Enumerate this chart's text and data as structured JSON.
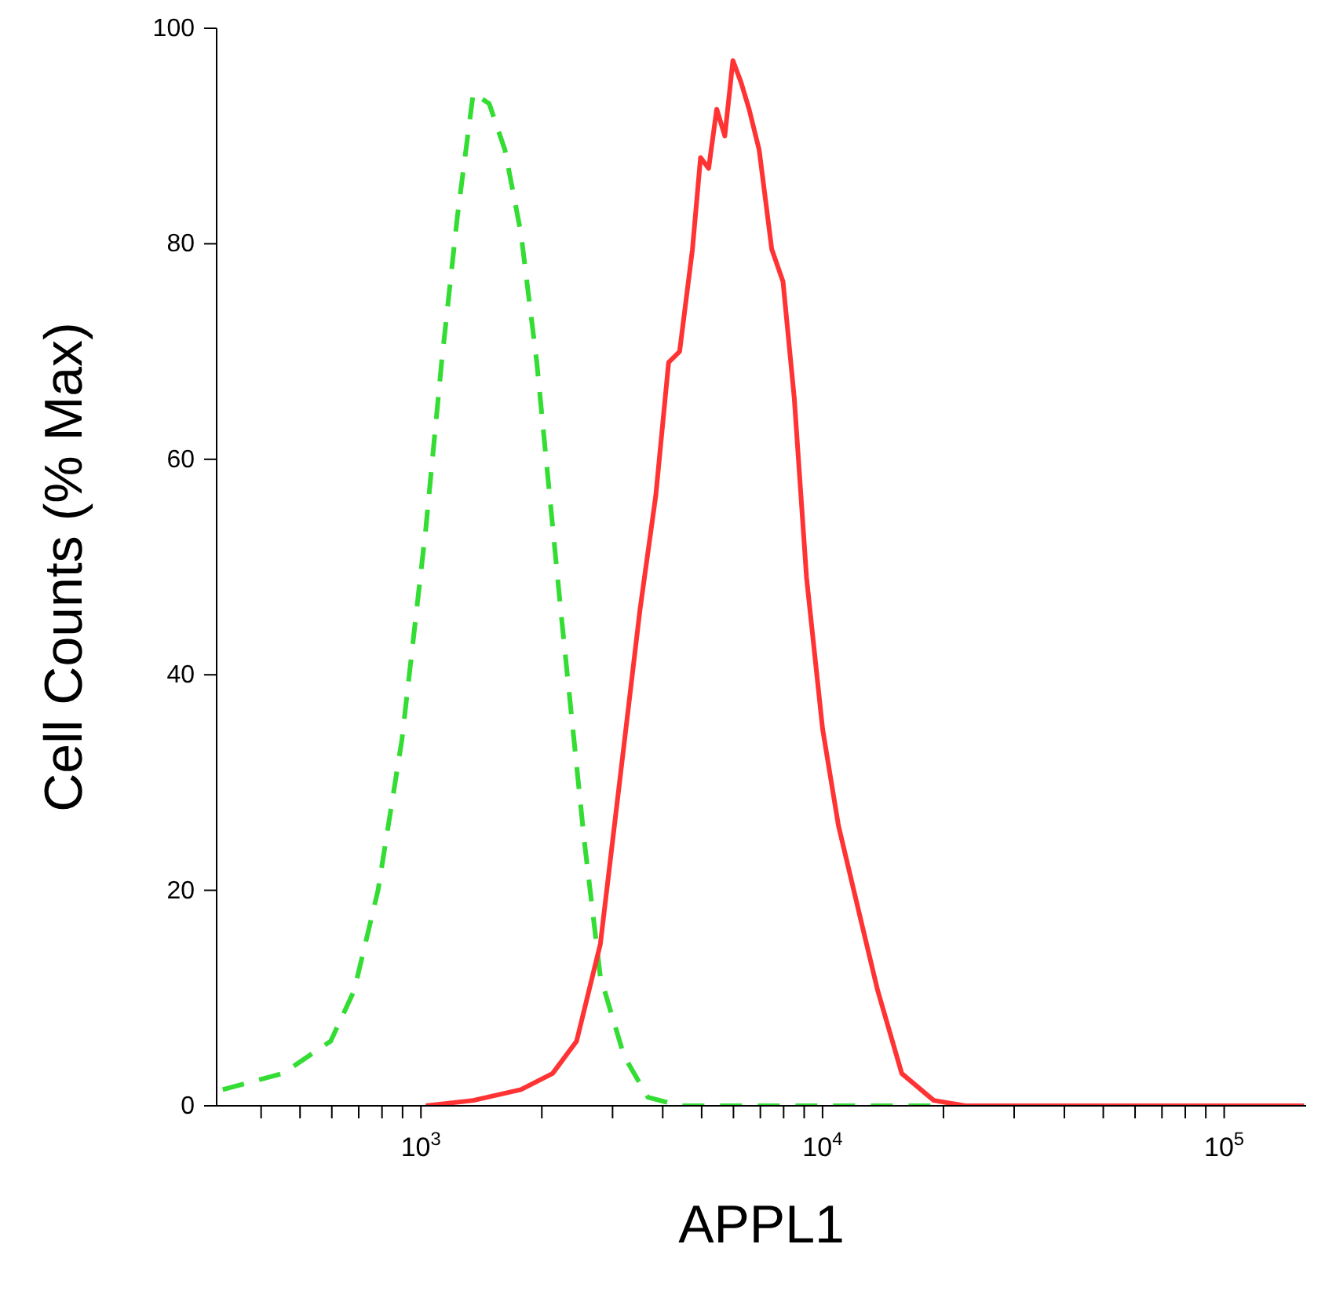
{
  "chart_data": {
    "type": "line",
    "xlabel": "APPL1",
    "ylabel": "Cell Counts (% Max)",
    "log": "x",
    "grid": false,
    "legend": false,
    "marker": "none",
    "xlim": [
      310,
      160000
    ],
    "xticks": [
      {
        "value": 400,
        "label": null
      },
      {
        "value": 500,
        "label": null
      },
      {
        "value": 600,
        "label": null
      },
      {
        "value": 700,
        "label": null
      },
      {
        "value": 800,
        "label": null
      },
      {
        "value": 900,
        "label": null
      },
      {
        "value": 1000,
        "label": "10$^{3}$"
      },
      {
        "value": 2000,
        "label": null
      },
      {
        "value": 3000,
        "label": null
      },
      {
        "value": 4000,
        "label": null
      },
      {
        "value": 5000,
        "label": null
      },
      {
        "value": 6000,
        "label": null
      },
      {
        "value": 7000,
        "label": null
      },
      {
        "value": 8000,
        "label": null
      },
      {
        "value": 9000,
        "label": null
      },
      {
        "value": 10000,
        "label": "10$^{4}$"
      },
      {
        "value": 20000,
        "label": null
      },
      {
        "value": 30000,
        "label": null
      },
      {
        "value": 40000,
        "label": null
      },
      {
        "value": 50000,
        "label": null
      },
      {
        "value": 60000,
        "label": null
      },
      {
        "value": 70000,
        "label": null
      },
      {
        "value": 80000,
        "label": null
      },
      {
        "value": 90000,
        "label": null
      },
      {
        "value": 100000,
        "label": "10$^{5}$"
      }
    ],
    "ylim": [
      0,
      100
    ],
    "yticks": [
      0,
      20,
      40,
      60,
      80,
      100
    ],
    "series": [
      {
        "color": "#33dd33",
        "line_style": "dashed",
        "x": [
          321,
          453,
          596,
          682,
          782,
          897,
          1028,
          1126,
          1233,
          1350,
          1479,
          1619,
          1774,
          1943,
          2229,
          2553,
          2797,
          3206,
          3674,
          4406,
          158000
        ],
        "values": [
          1.5,
          3,
          6,
          10.7,
          20,
          34,
          53.5,
          69,
          82.6,
          94,
          93,
          88.7,
          81,
          69,
          46,
          24.5,
          12,
          4.6,
          0.8,
          0,
          0
        ]
      },
      {
        "color": "#ff3333",
        "line_style": "solid",
        "x": [
          1028,
          1350,
          1774,
          2127,
          2441,
          2797,
          3206,
          3510,
          3843,
          4138,
          4406,
          4743,
          4968,
          5205,
          5451,
          5710,
          5981,
          6265,
          6562,
          6954,
          7473,
          7971,
          8502,
          9124,
          10000,
          10954,
          12535,
          13718,
          15748,
          18918,
          22674,
          158000
        ],
        "values": [
          0,
          0.5,
          1.5,
          3,
          6,
          15,
          33.6,
          46,
          56.6,
          69,
          70,
          79.5,
          88,
          87,
          92.5,
          90,
          97,
          95,
          92.5,
          88.7,
          79.5,
          76.5,
          65.7,
          49,
          35,
          26,
          16.8,
          10.7,
          3,
          0.5,
          0,
          0
        ]
      }
    ]
  }
}
